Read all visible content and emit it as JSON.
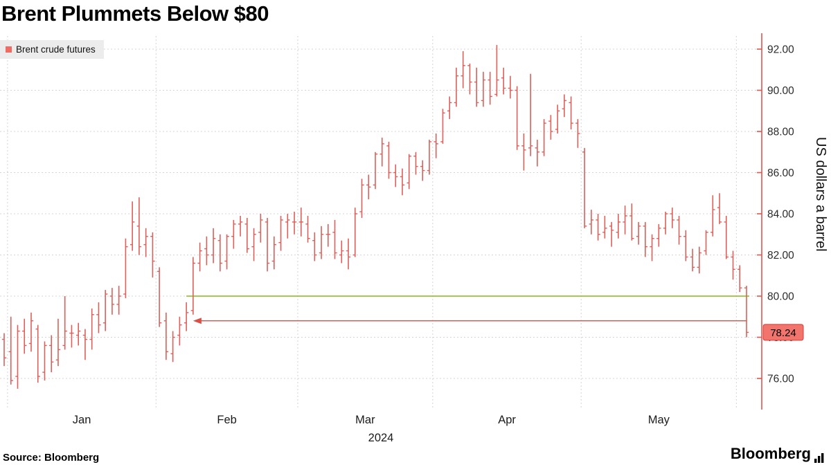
{
  "header": {
    "title": "Brent Plummets Below $80"
  },
  "legend": {
    "label": "Brent crude futures",
    "marker_color": "#ef6c62"
  },
  "footer": {
    "source": "Source: Bloomberg",
    "brand": "Bloomberg"
  },
  "chart_data": {
    "type": "ohlc",
    "title": "Brent Plummets Below $80",
    "series_name": "Brent crude futures",
    "ylabel": "US dollars a barrel",
    "ylim": [
      75.5,
      92.5
    ],
    "y_ticks": [
      76,
      78,
      80,
      82,
      84,
      86,
      88,
      90,
      92
    ],
    "grid": "dashed",
    "legend_position": "top-left",
    "axis_side": "right",
    "last_price": 78.24,
    "badge_label": "78.24",
    "year_label": "2024",
    "x_month_labels": [
      {
        "month": "2024-01",
        "label": "Jan"
      },
      {
        "month": "2024-02",
        "label": "Feb"
      },
      {
        "month": "2024-03",
        "label": "Mar"
      },
      {
        "month": "2024-04",
        "label": "Apr"
      },
      {
        "month": "2024-05",
        "label": "May"
      }
    ],
    "reference_line": {
      "value": 80.0,
      "color": "#86b917",
      "start_index": 27
    },
    "arrow": {
      "value": 78.8,
      "color": "#d94f46",
      "direction": "left",
      "tip_index": 28,
      "tail_index": 110
    },
    "colors": {
      "bar": "#dc6059",
      "axis": "#e2544d",
      "grid": "#d4d4d4",
      "badge_bg": "#f2756d",
      "badge_border": "#cf3a33"
    },
    "bar_format": [
      "date",
      "open",
      "high",
      "low",
      "close"
    ],
    "bars": [
      [
        "2023-12-29",
        77.9,
        78.2,
        76.6,
        77.0
      ],
      [
        "2024-01-02",
        77.3,
        79.0,
        75.7,
        75.9
      ],
      [
        "2024-01-03",
        76.1,
        78.6,
        75.5,
        78.3
      ],
      [
        "2024-01-04",
        78.3,
        78.9,
        77.2,
        77.6
      ],
      [
        "2024-01-05",
        77.7,
        79.2,
        77.3,
        78.8
      ],
      [
        "2024-01-08",
        78.4,
        78.6,
        75.8,
        76.1
      ],
      [
        "2024-01-09",
        76.3,
        77.8,
        75.9,
        77.6
      ],
      [
        "2024-01-10",
        77.6,
        78.1,
        76.3,
        76.8
      ],
      [
        "2024-01-11",
        76.9,
        78.9,
        76.6,
        77.4
      ],
      [
        "2024-01-12",
        77.6,
        80.0,
        77.4,
        78.3
      ],
      [
        "2024-01-15",
        78.2,
        78.6,
        77.5,
        78.2
      ],
      [
        "2024-01-16",
        78.1,
        78.7,
        77.6,
        78.3
      ],
      [
        "2024-01-17",
        78.1,
        78.4,
        76.9,
        77.9
      ],
      [
        "2024-01-18",
        77.9,
        79.4,
        77.4,
        79.1
      ],
      [
        "2024-01-19",
        79.1,
        79.7,
        78.2,
        78.6
      ],
      [
        "2024-01-22",
        78.7,
        80.3,
        78.3,
        80.1
      ],
      [
        "2024-01-23",
        80.0,
        80.4,
        79.1,
        79.6
      ],
      [
        "2024-01-24",
        79.6,
        80.5,
        79.1,
        80.0
      ],
      [
        "2024-01-25",
        80.1,
        82.8,
        79.9,
        82.4
      ],
      [
        "2024-01-26",
        82.5,
        84.6,
        82.2,
        83.6
      ],
      [
        "2024-01-29",
        83.4,
        84.8,
        82.0,
        82.4
      ],
      [
        "2024-01-30",
        82.5,
        83.3,
        81.9,
        82.9
      ],
      [
        "2024-01-31",
        82.9,
        83.1,
        80.9,
        81.7
      ],
      [
        "2024-02-01",
        81.2,
        81.4,
        78.5,
        78.7
      ],
      [
        "2024-02-02",
        78.8,
        79.2,
        76.9,
        77.3
      ],
      [
        "2024-02-05",
        77.2,
        78.3,
        76.8,
        78.0
      ],
      [
        "2024-02-06",
        78.1,
        79.0,
        77.6,
        78.6
      ],
      [
        "2024-02-07",
        78.7,
        79.7,
        78.3,
        79.2
      ],
      [
        "2024-02-08",
        79.3,
        81.9,
        79.1,
        81.6
      ],
      [
        "2024-02-09",
        81.6,
        82.6,
        81.2,
        82.2
      ],
      [
        "2024-02-12",
        82.3,
        82.9,
        81.5,
        82.0
      ],
      [
        "2024-02-13",
        82.0,
        83.3,
        81.6,
        82.8
      ],
      [
        "2024-02-14",
        82.7,
        83.0,
        81.2,
        81.6
      ],
      [
        "2024-02-15",
        81.7,
        83.0,
        81.3,
        82.9
      ],
      [
        "2024-02-16",
        82.9,
        83.7,
        82.3,
        83.5
      ],
      [
        "2024-02-19",
        83.5,
        83.9,
        82.9,
        83.6
      ],
      [
        "2024-02-20",
        83.5,
        83.8,
        82.1,
        82.3
      ],
      [
        "2024-02-21",
        82.4,
        83.3,
        81.7,
        83.0
      ],
      [
        "2024-02-22",
        83.1,
        84.0,
        82.6,
        83.7
      ],
      [
        "2024-02-23",
        83.6,
        83.8,
        81.2,
        81.6
      ],
      [
        "2024-02-26",
        81.7,
        82.9,
        81.3,
        82.5
      ],
      [
        "2024-02-27",
        82.6,
        83.9,
        82.2,
        83.7
      ],
      [
        "2024-02-28",
        83.6,
        84.0,
        82.8,
        83.7
      ],
      [
        "2024-02-29",
        83.6,
        84.1,
        83.0,
        83.6
      ],
      [
        "2024-03-01",
        83.6,
        84.3,
        82.9,
        83.6
      ],
      [
        "2024-03-04",
        83.5,
        83.9,
        82.6,
        82.8
      ],
      [
        "2024-03-05",
        82.7,
        83.1,
        81.7,
        82.0
      ],
      [
        "2024-03-06",
        82.1,
        83.4,
        81.8,
        83.0
      ],
      [
        "2024-03-07",
        83.0,
        83.5,
        82.4,
        83.0
      ],
      [
        "2024-03-08",
        83.1,
        83.7,
        81.8,
        82.1
      ],
      [
        "2024-03-11",
        82.0,
        82.7,
        81.6,
        82.2
      ],
      [
        "2024-03-12",
        82.2,
        82.8,
        81.3,
        81.9
      ],
      [
        "2024-03-13",
        82.0,
        84.3,
        81.9,
        84.0
      ],
      [
        "2024-03-14",
        84.1,
        85.7,
        83.8,
        85.4
      ],
      [
        "2024-03-15",
        85.4,
        85.9,
        84.7,
        85.3
      ],
      [
        "2024-03-18",
        85.4,
        87.0,
        85.2,
        86.9
      ],
      [
        "2024-03-19",
        86.9,
        87.7,
        86.3,
        87.4
      ],
      [
        "2024-03-20",
        87.3,
        87.5,
        85.7,
        86.0
      ],
      [
        "2024-03-21",
        86.0,
        86.4,
        85.3,
        85.8
      ],
      [
        "2024-03-22",
        85.8,
        86.2,
        84.9,
        85.4
      ],
      [
        "2024-03-25",
        85.5,
        86.9,
        85.2,
        86.8
      ],
      [
        "2024-03-26",
        86.8,
        87.0,
        85.9,
        86.3
      ],
      [
        "2024-03-27",
        86.3,
        86.6,
        85.6,
        86.1
      ],
      [
        "2024-03-28",
        86.1,
        87.6,
        85.9,
        87.5
      ],
      [
        "2024-04-01",
        87.5,
        87.9,
        86.7,
        87.4
      ],
      [
        "2024-04-02",
        87.5,
        89.1,
        87.4,
        88.9
      ],
      [
        "2024-04-03",
        89.0,
        89.7,
        88.6,
        89.4
      ],
      [
        "2024-04-04",
        89.4,
        91.1,
        89.2,
        90.7
      ],
      [
        "2024-04-05",
        90.7,
        91.9,
        90.1,
        91.2
      ],
      [
        "2024-04-08",
        91.2,
        91.3,
        89.8,
        90.4
      ],
      [
        "2024-04-09",
        90.4,
        91.1,
        89.2,
        89.4
      ],
      [
        "2024-04-10",
        89.5,
        90.9,
        89.2,
        90.5
      ],
      [
        "2024-04-11",
        90.5,
        90.9,
        89.3,
        89.7
      ],
      [
        "2024-04-12",
        89.8,
        92.2,
        89.7,
        90.5
      ],
      [
        "2024-04-15",
        90.6,
        91.1,
        89.8,
        90.1
      ],
      [
        "2024-04-16",
        90.1,
        90.7,
        89.6,
        90.0
      ],
      [
        "2024-04-17",
        90.0,
        90.2,
        87.1,
        87.3
      ],
      [
        "2024-04-18",
        87.3,
        87.9,
        86.1,
        87.1
      ],
      [
        "2024-04-19",
        87.2,
        90.8,
        86.8,
        87.3
      ],
      [
        "2024-04-22",
        87.2,
        87.6,
        86.3,
        87.0
      ],
      [
        "2024-04-23",
        87.0,
        88.6,
        86.8,
        88.4
      ],
      [
        "2024-04-24",
        88.5,
        88.8,
        87.6,
        88.0
      ],
      [
        "2024-04-25",
        88.1,
        89.3,
        87.9,
        89.0
      ],
      [
        "2024-04-26",
        89.1,
        89.8,
        88.7,
        89.5
      ],
      [
        "2024-04-29",
        89.4,
        89.7,
        88.1,
        88.4
      ],
      [
        "2024-04-30",
        88.4,
        88.6,
        87.2,
        87.9
      ],
      [
        "2024-05-01",
        87.0,
        87.2,
        83.3,
        83.4
      ],
      [
        "2024-05-02",
        83.5,
        84.2,
        83.0,
        83.7
      ],
      [
        "2024-05-03",
        83.7,
        84.0,
        82.7,
        83.0
      ],
      [
        "2024-05-06",
        83.1,
        83.9,
        82.8,
        83.3
      ],
      [
        "2024-05-07",
        83.4,
        83.6,
        82.4,
        83.2
      ],
      [
        "2024-05-08",
        83.1,
        84.0,
        82.8,
        83.6
      ],
      [
        "2024-05-09",
        83.6,
        84.4,
        83.0,
        83.9
      ],
      [
        "2024-05-10",
        83.9,
        84.5,
        82.7,
        82.8
      ],
      [
        "2024-05-13",
        82.9,
        83.6,
        82.5,
        83.4
      ],
      [
        "2024-05-14",
        83.4,
        83.6,
        81.9,
        82.4
      ],
      [
        "2024-05-15",
        82.4,
        83.0,
        81.7,
        82.8
      ],
      [
        "2024-05-16",
        82.8,
        83.5,
        82.4,
        83.3
      ],
      [
        "2024-05-17",
        83.3,
        84.1,
        83.0,
        84.0
      ],
      [
        "2024-05-20",
        84.0,
        84.3,
        83.3,
        83.7
      ],
      [
        "2024-05-21",
        83.7,
        83.9,
        82.5,
        82.9
      ],
      [
        "2024-05-22",
        82.9,
        83.2,
        81.7,
        81.9
      ],
      [
        "2024-05-23",
        81.9,
        82.3,
        81.2,
        81.4
      ],
      [
        "2024-05-24",
        81.4,
        82.4,
        81.1,
        82.1
      ],
      [
        "2024-05-27",
        82.2,
        83.2,
        82.0,
        83.1
      ],
      [
        "2024-05-28",
        83.1,
        84.9,
        82.9,
        84.2
      ],
      [
        "2024-05-29",
        84.3,
        85.0,
        83.5,
        83.6
      ],
      [
        "2024-05-30",
        83.6,
        83.9,
        81.8,
        81.9
      ],
      [
        "2024-05-31",
        81.9,
        82.2,
        80.8,
        81.3
      ],
      [
        "2024-06-03",
        81.3,
        81.5,
        80.2,
        80.4
      ],
      [
        "2024-06-04",
        80.4,
        80.5,
        78.0,
        78.24
      ]
    ]
  }
}
